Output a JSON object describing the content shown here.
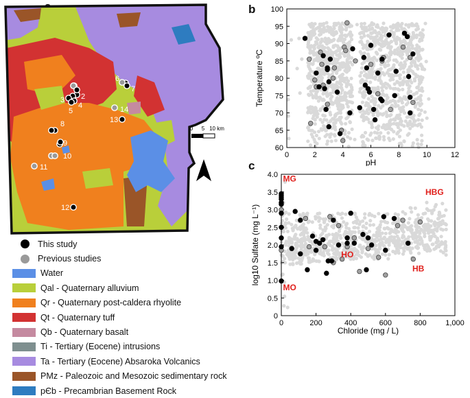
{
  "panels": {
    "a": "a",
    "b": "b",
    "c": "c"
  },
  "map": {
    "site_labels": [
      "6",
      "7",
      "2",
      "3",
      "4",
      "5",
      "14",
      "13",
      "8",
      "9",
      "10",
      "11",
      "12"
    ],
    "scale_bar": {
      "ticks": [
        "0",
        "5",
        "10 km"
      ]
    },
    "north_arrow": "north-arrow-icon"
  },
  "legend": {
    "items": [
      {
        "label": "This study",
        "kind": "dot",
        "color": "#000000"
      },
      {
        "label": "Previous studies",
        "kind": "dot",
        "color": "#9a9a9a"
      },
      {
        "label": "Water",
        "kind": "swatch",
        "color": "#5b8fe6"
      },
      {
        "label": "Qal - Quaternary alluvium",
        "kind": "swatch",
        "color": "#b9cf3a"
      },
      {
        "label": "Qr - Quaternary post-caldera rhyolite",
        "kind": "swatch",
        "color": "#f0801e"
      },
      {
        "label": "Qt - Quaternary tuff",
        "kind": "swatch",
        "color": "#d23232"
      },
      {
        "label": "Qb - Quaternary basalt",
        "kind": "swatch",
        "color": "#c58aa0"
      },
      {
        "label": "Ti - Tertiary (Eocene) intrusions",
        "kind": "swatch",
        "color": "#7e8f8f"
      },
      {
        "label": "Ta - Tertiary (Eocene) Absaroka Volcanics",
        "kind": "swatch",
        "color": "#a78be0"
      },
      {
        "label": "PMz - Paleozoic and Mesozoic sedimentary rock",
        "kind": "swatch",
        "color": "#9a5528"
      },
      {
        "label": "pЄb - Precambrian Basement Rock",
        "kind": "swatch",
        "color": "#2e7cc0"
      }
    ]
  },
  "chart_data": [
    {
      "type": "scatter",
      "panel": "b",
      "xlabel": "pH",
      "ylabel": "Temperature ºC",
      "xlim": [
        0,
        12
      ],
      "ylim": [
        60,
        100
      ],
      "xticks": [
        "0",
        "2",
        "4",
        "6",
        "8",
        "10",
        "12"
      ],
      "yticks": [
        "60",
        "65",
        "70",
        "75",
        "80",
        "85",
        "90",
        "95",
        "100"
      ],
      "series": [
        {
          "name": "This study",
          "color": "#000000",
          "x": [
            1.3,
            2.1,
            2.3,
            2.6,
            2.7,
            2.8,
            2.9,
            3.0,
            3.0,
            3.1,
            3.6,
            3.8,
            4.5,
            4.7,
            5.2,
            5.5,
            5.6,
            5.7,
            5.8,
            5.9,
            6.0,
            6.2,
            6.3,
            6.5,
            6.7,
            6.8,
            6.8,
            7.3,
            7.7,
            7.8,
            8.4,
            8.7,
            8.8,
            8.8,
            9.0,
            2.9,
            8.6
          ],
          "y": [
            91.5,
            81.5,
            77.5,
            86.5,
            77.0,
            71.0,
            83.0,
            66.0,
            79.0,
            85.5,
            76.0,
            64.0,
            70.0,
            88.5,
            71.5,
            86.0,
            78.0,
            83.0,
            77.0,
            76.0,
            89.5,
            71.0,
            68.0,
            81.5,
            74.0,
            85.5,
            73.5,
            92.5,
            75.0,
            82.0,
            93.0,
            80.5,
            74.5,
            70.0,
            87.0,
            82.5,
            92.0
          ]
        },
        {
          "name": "Previous studies",
          "color": "#a0a0a0",
          "x": [
            1.6,
            1.7,
            2.1,
            2.4,
            2.5,
            2.6,
            2.9,
            3.4,
            3.9,
            4.1,
            4.2,
            4.3,
            4.9,
            6.5,
            6.8,
            6.9,
            7.4,
            8.3,
            8.8,
            9.0,
            2.0,
            3.3,
            4.0,
            6.0
          ],
          "y": [
            85.5,
            67.0,
            77.5,
            87.5,
            84.0,
            78.0,
            72.5,
            83.0,
            65.0,
            89.0,
            88.0,
            96.0,
            85.0,
            75.5,
            85.0,
            86.0,
            71.0,
            89.0,
            86.0,
            73.0,
            79.5,
            80.0,
            62.0,
            84.0
          ]
        }
      ]
    },
    {
      "type": "scatter",
      "panel": "c",
      "xlabel": "Chloride (mg / L)",
      "ylabel": "log10 Sulfate (mg L⁻¹)",
      "xlim": [
        0,
        1000
      ],
      "ylim": [
        0,
        4
      ],
      "xticks": [
        "0",
        "200",
        "400",
        "600",
        "800",
        "1,000"
      ],
      "yticks": [
        "0",
        "0.5",
        "1.0",
        "1.5",
        "2.0",
        "2.5",
        "3.0",
        "3.5",
        "4.0"
      ],
      "annotations": [
        {
          "text": "MG",
          "x": 10,
          "y": 3.8
        },
        {
          "text": "HBG",
          "x": 830,
          "y": 3.42
        },
        {
          "text": "HO",
          "x": 345,
          "y": 1.65
        },
        {
          "text": "HB",
          "x": 755,
          "y": 1.25
        },
        {
          "text": "MO",
          "x": 10,
          "y": 0.72
        }
      ],
      "annotation_color": "#e0201c",
      "series": [
        {
          "name": "This study",
          "color": "#000000",
          "x": [
            0,
            0,
            0,
            0,
            0,
            0,
            0,
            0,
            0,
            0,
            0,
            60,
            80,
            110,
            150,
            180,
            200,
            220,
            260,
            270,
            290,
            300,
            330,
            380,
            400,
            420,
            470,
            490,
            500,
            520,
            590,
            600,
            650,
            730,
            240,
            380,
            110,
            200
          ],
          "y": [
            3.45,
            3.4,
            3.35,
            3.3,
            3.2,
            3.15,
            2.9,
            2.5,
            2.2,
            1.95,
            0.98,
            1.9,
            2.95,
            1.75,
            1.3,
            2.25,
            1.85,
            2.05,
            1.2,
            1.55,
            1.55,
            2.7,
            2.0,
            2.2,
            2.9,
            2.05,
            2.3,
            1.3,
            2.2,
            2.0,
            2.8,
            1.85,
            2.75,
            2.05,
            2.15,
            2.05,
            2.7,
            2.1
          ]
        },
        {
          "name": "Previous studies",
          "color": "#a0a0a0",
          "x": [
            0,
            0,
            0,
            140,
            160,
            280,
            300,
            330,
            380,
            420,
            500,
            560,
            600,
            670,
            700,
            760,
            800,
            350,
            450,
            250
          ],
          "y": [
            3.3,
            3.0,
            1.85,
            2.75,
            1.95,
            2.8,
            1.5,
            2.55,
            1.95,
            2.2,
            1.9,
            1.65,
            1.15,
            2.55,
            2.7,
            1.6,
            2.65,
            1.6,
            1.25,
            1.95
          ]
        }
      ]
    }
  ]
}
